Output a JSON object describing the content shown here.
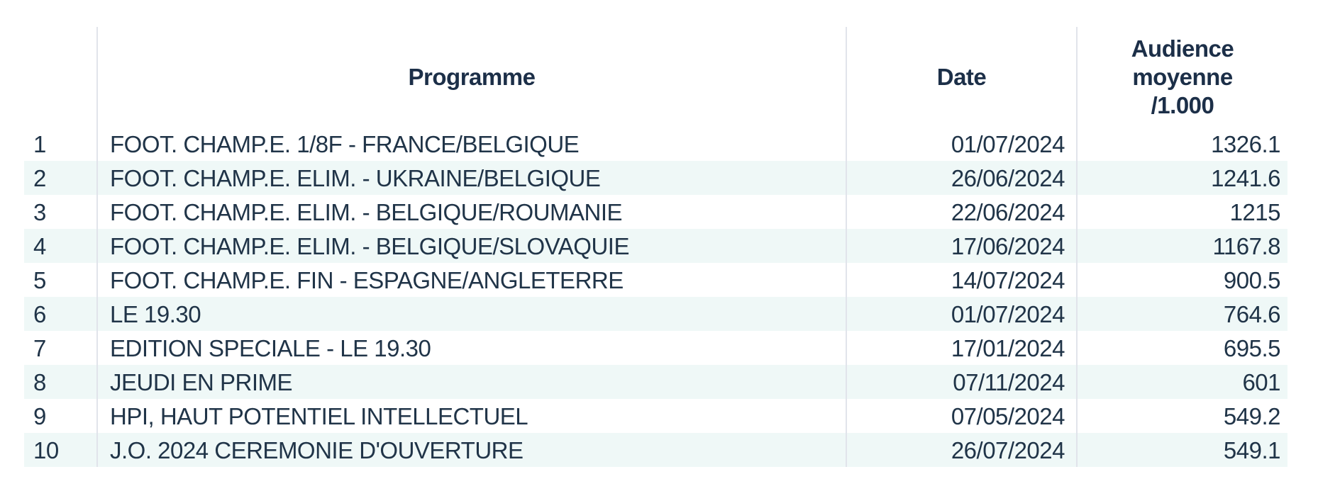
{
  "header": {
    "rank": "",
    "programme": "Programme",
    "date": "Date",
    "audience_lines": [
      "Audience",
      "moyenne",
      "/1.000"
    ]
  },
  "colors": {
    "text": "#203448",
    "header_text": "#1c2f48",
    "row_stripe": "#eff8f7",
    "column_divider": "#e1e4eb",
    "background": "#ffffff"
  },
  "chart_data": {
    "type": "table",
    "title": "",
    "columns": [
      "",
      "Programme",
      "Date",
      "Audience moyenne /1.000"
    ],
    "rows": [
      [
        "1",
        "FOOT. CHAMP.E. 1/8F - FRANCE/BELGIQUE",
        "01/07/2024",
        "1326.1"
      ],
      [
        "2",
        "FOOT. CHAMP.E. ELIM. - UKRAINE/BELGIQUE",
        "26/06/2024",
        "1241.6"
      ],
      [
        "3",
        "FOOT. CHAMP.E. ELIM. - BELGIQUE/ROUMANIE",
        "22/06/2024",
        "1215"
      ],
      [
        "4",
        "FOOT. CHAMP.E. ELIM. - BELGIQUE/SLOVAQUIE",
        "17/06/2024",
        "1167.8"
      ],
      [
        "5",
        "FOOT. CHAMP.E. FIN - ESPAGNE/ANGLETERRE",
        "14/07/2024",
        "900.5"
      ],
      [
        "6",
        "LE 19.30",
        "01/07/2024",
        "764.6"
      ],
      [
        "7",
        "EDITION SPECIALE - LE 19.30",
        "17/01/2024",
        "695.5"
      ],
      [
        "8",
        "JEUDI EN PRIME",
        "07/11/2024",
        "601"
      ],
      [
        "9",
        "HPI, HAUT POTENTIEL INTELLECTUEL",
        "07/05/2024",
        "549.2"
      ],
      [
        "10",
        "J.O. 2024 CEREMONIE D'OUVERTURE",
        "26/07/2024",
        "549.1"
      ]
    ]
  }
}
